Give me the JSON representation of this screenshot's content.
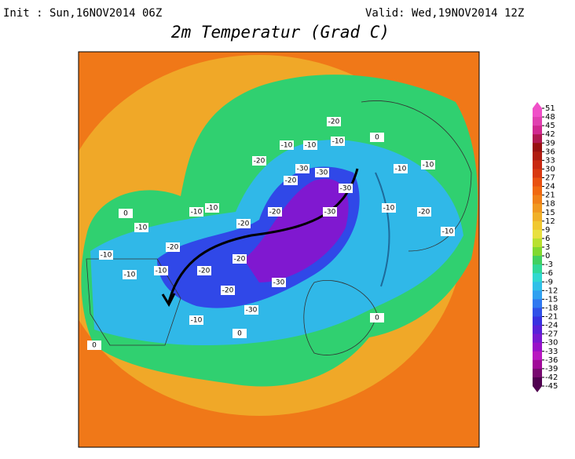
{
  "header": {
    "init": "Init : Sun,16NOV2014 06Z",
    "valid": "Valid: Wed,19NOV2014 12Z",
    "title": "2m Temperatur (Grad C)"
  },
  "map_labels": [
    "-20",
    "-10",
    "-10",
    "-10",
    "-20",
    "-30",
    "-30",
    "-20",
    "-30",
    "-10",
    "-10",
    "-20",
    "-30",
    "-20",
    "-10",
    "-10",
    "-20",
    "-10",
    "-10",
    "-20",
    "-20",
    "-30",
    "-30",
    "-20",
    "-10",
    "-10",
    "-10",
    "-10",
    "-20",
    "-10",
    "0",
    "0",
    "0",
    "0",
    "0"
  ],
  "colorbar": {
    "ticks": [
      51,
      48,
      45,
      42,
      39,
      36,
      33,
      30,
      27,
      24,
      21,
      18,
      15,
      12,
      9,
      6,
      3,
      0,
      -3,
      -6,
      -9,
      -12,
      -15,
      -18,
      -21,
      -24,
      -27,
      -30,
      -33,
      -36,
      -39,
      -42,
      -45
    ],
    "colors": [
      "#f050c8",
      "#e040b0",
      "#d02890",
      "#b01850",
      "#981010",
      "#b01c10",
      "#c82810",
      "#d83810",
      "#e85010",
      "#f06810",
      "#f08018",
      "#f09820",
      "#f0b028",
      "#f0c830",
      "#e8e040",
      "#b8e030",
      "#80d830",
      "#40d060",
      "#30d898",
      "#30d8d0",
      "#30c0e8",
      "#30a0f0",
      "#3078f0",
      "#3050e8",
      "#3830e0",
      "#5820d8",
      "#7818d0",
      "#9810c8",
      "#b818c0",
      "#a00898",
      "#780870",
      "#500050"
    ]
  }
}
